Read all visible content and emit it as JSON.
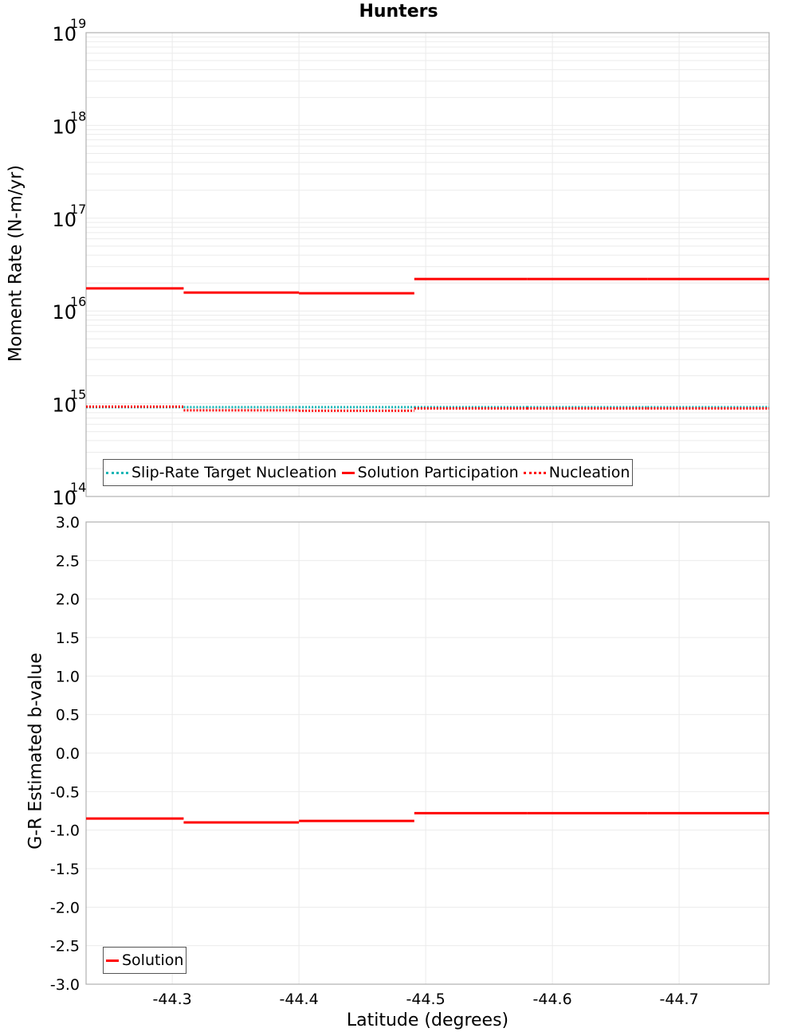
{
  "title": "Hunters",
  "colors": {
    "solution": "#ff0000",
    "target": "#13b5b5",
    "nucleation": "#ff0000",
    "grid": "#ebebeb",
    "axis": "#b0b0b0"
  },
  "chart_data": [
    {
      "type": "line",
      "subtype": "step",
      "title": "Hunters",
      "xlabel": "Latitude (degrees)",
      "ylabel": "Moment Rate (N-m/yr)",
      "yscale": "log",
      "ylim": [
        100000000000000.0,
        1e+19
      ],
      "xlim": [
        -44.232,
        -44.771
      ],
      "x_ticks": [
        "-44.3",
        "-44.4",
        "-44.5",
        "-44.6",
        "-44.7"
      ],
      "y_ticks": [
        "10^14",
        "10^15",
        "10^16",
        "10^17",
        "10^18",
        "10^19"
      ],
      "grid": true,
      "legend_position": "bottom-left inside",
      "segment_bounds": [
        -44.232,
        -44.309,
        -44.4,
        -44.491,
        -44.58,
        -44.675,
        -44.771
      ],
      "series": [
        {
          "name": "Slip-Rate Target Nucleation",
          "style": "dotted",
          "color": "#13b5b5",
          "values": [
            920000000000000.0,
            920000000000000.0,
            920000000000000.0,
            920000000000000.0,
            920000000000000.0,
            920000000000000.0
          ]
        },
        {
          "name": "Solution Participation",
          "style": "solid",
          "color": "#ff0000",
          "values": [
            1.75e+16,
            1.58e+16,
            1.55e+16,
            2.21e+16,
            2.21e+16,
            2.21e+16
          ]
        },
        {
          "name": "Nucleation",
          "style": "dotted",
          "color": "#ff0000",
          "values": [
            930000000000000.0,
            850000000000000.0,
            840000000000000.0,
            890000000000000.0,
            890000000000000.0,
            890000000000000.0
          ]
        }
      ]
    },
    {
      "type": "line",
      "subtype": "step",
      "title": "",
      "xlabel": "Latitude (degrees)",
      "ylabel": "G-R Estimated b-value",
      "ylim": [
        -3.0,
        3.0
      ],
      "xlim": [
        -44.232,
        -44.771
      ],
      "x_ticks": [
        "-44.3",
        "-44.4",
        "-44.5",
        "-44.6",
        "-44.7"
      ],
      "y_ticks": [
        "3.0",
        "2.5",
        "2.0",
        "1.5",
        "1.0",
        "0.5",
        "0.0",
        "-0.5",
        "-1.0",
        "-1.5",
        "-2.0",
        "-2.5",
        "-3.0"
      ],
      "grid": true,
      "legend_position": "bottom-left inside",
      "segment_bounds": [
        -44.232,
        -44.309,
        -44.4,
        -44.491,
        -44.58,
        -44.675,
        -44.771
      ],
      "series": [
        {
          "name": "Solution",
          "style": "solid",
          "color": "#ff0000",
          "values": [
            -0.85,
            -0.9,
            -0.88,
            -0.78,
            -0.78,
            -0.78
          ]
        }
      ]
    }
  ],
  "top": {
    "ylabel": "Moment Rate (N-m/yr)",
    "y_tick_base": "10",
    "y_tick_exps": [
      "19",
      "18",
      "17",
      "16",
      "15",
      "14"
    ],
    "legend": [
      "Slip-Rate Target Nucleation",
      "Solution Participation",
      "Nucleation"
    ]
  },
  "bottom": {
    "ylabel": "G-R Estimated b-value",
    "y_ticks": [
      "3.0",
      "2.5",
      "2.0",
      "1.5",
      "1.0",
      "0.5",
      "0.0",
      "-0.5",
      "-1.0",
      "-1.5",
      "-2.0",
      "-2.5",
      "-3.0"
    ],
    "legend": [
      "Solution"
    ]
  },
  "x_axis": {
    "label": "Latitude (degrees)",
    "ticks": [
      "-44.3",
      "-44.4",
      "-44.5",
      "-44.6",
      "-44.7"
    ]
  }
}
